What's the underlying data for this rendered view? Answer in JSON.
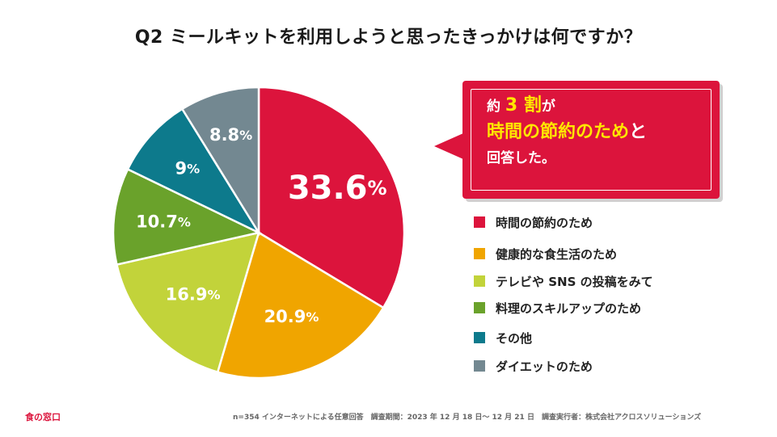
{
  "title": "Q2 ミールキットを利用しようと思ったきっかけは何ですか？",
  "callout": {
    "line1_prefix": "約",
    "line1_big": "3 割",
    "line1_suffix": "が",
    "line2_highlight": "時間の節約のため",
    "line2_suffix": "と",
    "line3": "回答した。"
  },
  "chart_data": {
    "type": "pie",
    "title": "Q2 ミールキットを利用しようと思ったきっかけは何ですか？",
    "unit": "%",
    "slices": [
      {
        "label": "時間の節約のため",
        "value": 33.6,
        "display": "33.6",
        "color": "#dc143c"
      },
      {
        "label": "健康的な食生活のため",
        "value": 20.9,
        "display": "20.9",
        "color": "#f0a500"
      },
      {
        "label": "テレビや SNS の投稿をみて",
        "value": 16.9,
        "display": "16.9",
        "color": "#c2d33a"
      },
      {
        "label": "料理のスキルアップのため",
        "value": 10.7,
        "display": "10.7",
        "color": "#6aa22b"
      },
      {
        "label": "その他",
        "value": 9,
        "display": "9",
        "color": "#0d7a8c"
      },
      {
        "label": "ダイエットのため",
        "value": 8.8,
        "display": "8.8",
        "color": "#738891"
      }
    ]
  },
  "legend": [
    "時間の節約のため",
    "健康的な食生活のため",
    "テレビや SNS の投稿をみて",
    "料理のスキルアップのため",
    "その他",
    "ダイエットのため"
  ],
  "brand": "食の窓口",
  "footnote": "n=354 インターネットによる任意回答　調査期間：2023 年 12 月 18 日～ 12 月 21 日　調査実行者：株式会社アクロスソリューションズ"
}
